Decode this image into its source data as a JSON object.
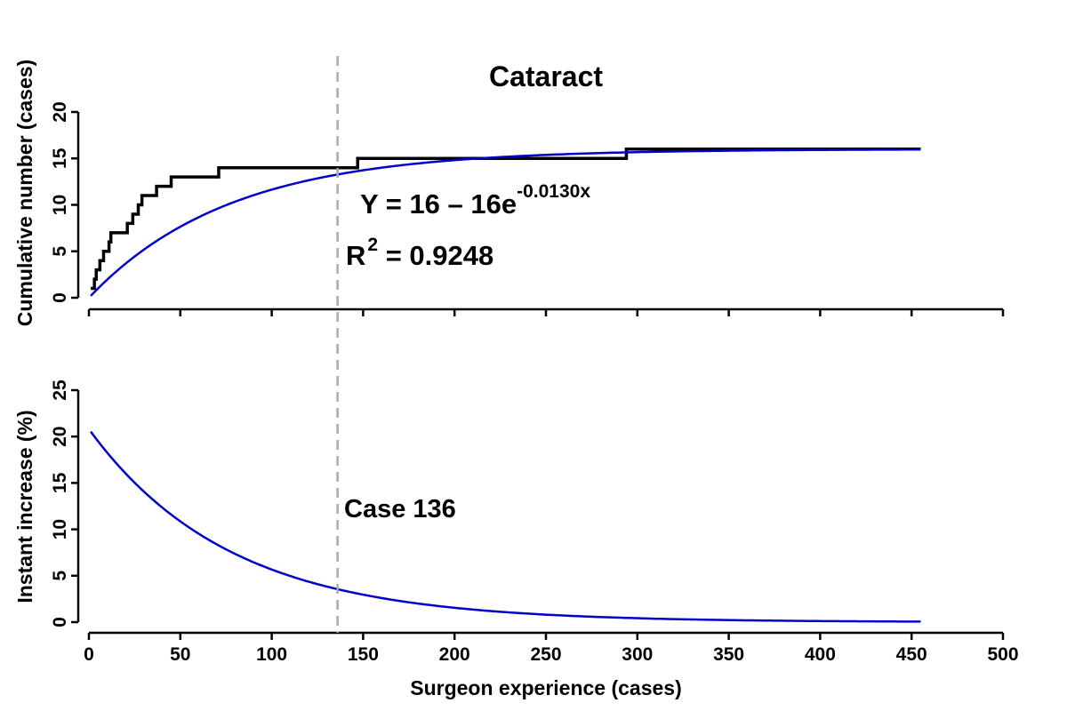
{
  "chart_data": {
    "title": "Cataract",
    "xlabel": "Surgeon experience (cases)",
    "xlim": [
      0,
      500
    ],
    "x_ticks": [
      0,
      50,
      100,
      150,
      200,
      250,
      300,
      350,
      400,
      450,
      500
    ],
    "grid": false,
    "reference_line": {
      "x": 136,
      "label": "Case 136",
      "style": "dashed",
      "color": "#aaaaaa"
    },
    "panels": [
      {
        "type": "line",
        "ylabel": "Cumulative number (cases)",
        "ylim": [
          0,
          20
        ],
        "y_ticks": [
          0,
          5,
          10,
          15,
          20
        ],
        "annotations": {
          "equation_main": "Y = 16 – 16e",
          "equation_exponent": "-0.0130x",
          "r2_prefix": "R",
          "r2_sup": "2",
          "r2_value": " = 0.9248"
        },
        "series": [
          {
            "style": "step",
            "color": "#000000",
            "points": [
              [
                1,
                1
              ],
              [
                3,
                2
              ],
              [
                4,
                3
              ],
              [
                6,
                4
              ],
              [
                8,
                5
              ],
              [
                11,
                6
              ],
              [
                12,
                7
              ],
              [
                21,
                8
              ],
              [
                24,
                9
              ],
              [
                27,
                10
              ],
              [
                29,
                11
              ],
              [
                37,
                12
              ],
              [
                45,
                13
              ],
              [
                71,
                14
              ],
              [
                147,
                15
              ],
              [
                294,
                16
              ],
              [
                455,
                16
              ]
            ]
          },
          {
            "style": "curve",
            "color": "#0000cc",
            "formula": "16 - 16*exp(-0.0130*x)",
            "x_range": [
              1,
              455
            ]
          }
        ]
      },
      {
        "type": "line",
        "ylabel": "Instant increase (%)",
        "ylim": [
          0,
          25
        ],
        "y_ticks": [
          0,
          5,
          10,
          15,
          20,
          25
        ],
        "series": [
          {
            "style": "curve",
            "color": "#0000cc",
            "formula": "20.8*exp(-0.0130*x)",
            "x_range": [
              1,
              455
            ]
          }
        ]
      }
    ]
  }
}
